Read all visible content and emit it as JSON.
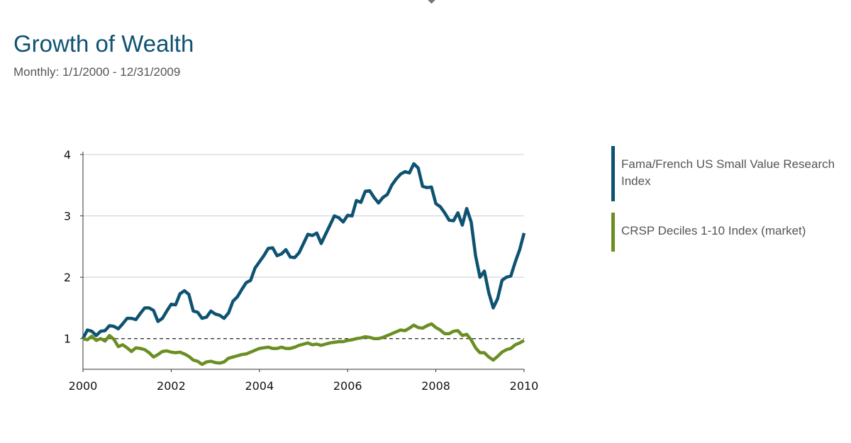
{
  "page": {
    "title": "Growth of Wealth",
    "subtitle": "Monthly: 1/1/2000 - 12/31/2009"
  },
  "chart_data": {
    "type": "line",
    "title": "Growth of Wealth",
    "subtitle": "Monthly: 1/1/2000 - 12/31/2009",
    "xlim": [
      2000,
      2010
    ],
    "ylim": [
      0.5,
      4.0
    ],
    "x_ticks": [
      2000,
      2002,
      2004,
      2006,
      2008,
      2010
    ],
    "y_ticks": [
      1,
      2,
      3,
      4
    ],
    "grid": "horizontal",
    "reference_line": 1,
    "legend_position": "right",
    "series": [
      {
        "name": "Fama/French US Small Value Research Index",
        "color": "#0e5272",
        "points": [
          [
            2000.0,
            1.0
          ],
          [
            2000.1,
            1.14
          ],
          [
            2000.2,
            1.12
          ],
          [
            2000.3,
            1.05
          ],
          [
            2000.4,
            1.12
          ],
          [
            2000.5,
            1.13
          ],
          [
            2000.6,
            1.21
          ],
          [
            2000.7,
            1.2
          ],
          [
            2000.8,
            1.16
          ],
          [
            2000.9,
            1.24
          ],
          [
            2001.0,
            1.33
          ],
          [
            2001.1,
            1.33
          ],
          [
            2001.2,
            1.31
          ],
          [
            2001.3,
            1.41
          ],
          [
            2001.4,
            1.5
          ],
          [
            2001.5,
            1.5
          ],
          [
            2001.6,
            1.46
          ],
          [
            2001.7,
            1.28
          ],
          [
            2001.8,
            1.33
          ],
          [
            2001.9,
            1.45
          ],
          [
            2002.0,
            1.56
          ],
          [
            2002.1,
            1.55
          ],
          [
            2002.2,
            1.73
          ],
          [
            2002.3,
            1.78
          ],
          [
            2002.4,
            1.72
          ],
          [
            2002.5,
            1.45
          ],
          [
            2002.6,
            1.43
          ],
          [
            2002.7,
            1.33
          ],
          [
            2002.8,
            1.35
          ],
          [
            2002.9,
            1.45
          ],
          [
            2003.0,
            1.4
          ],
          [
            2003.1,
            1.38
          ],
          [
            2003.2,
            1.33
          ],
          [
            2003.3,
            1.42
          ],
          [
            2003.4,
            1.61
          ],
          [
            2003.5,
            1.68
          ],
          [
            2003.6,
            1.8
          ],
          [
            2003.7,
            1.91
          ],
          [
            2003.8,
            1.95
          ],
          [
            2003.9,
            2.15
          ],
          [
            2004.0,
            2.25
          ],
          [
            2004.1,
            2.35
          ],
          [
            2004.2,
            2.47
          ],
          [
            2004.3,
            2.48
          ],
          [
            2004.4,
            2.35
          ],
          [
            2004.5,
            2.38
          ],
          [
            2004.6,
            2.45
          ],
          [
            2004.7,
            2.33
          ],
          [
            2004.8,
            2.32
          ],
          [
            2004.9,
            2.4
          ],
          [
            2005.0,
            2.55
          ],
          [
            2005.1,
            2.7
          ],
          [
            2005.2,
            2.68
          ],
          [
            2005.3,
            2.72
          ],
          [
            2005.4,
            2.55
          ],
          [
            2005.5,
            2.7
          ],
          [
            2005.6,
            2.85
          ],
          [
            2005.7,
            3.0
          ],
          [
            2005.8,
            2.97
          ],
          [
            2005.9,
            2.9
          ],
          [
            2006.0,
            3.01
          ],
          [
            2006.1,
            3.0
          ],
          [
            2006.2,
            3.25
          ],
          [
            2006.3,
            3.22
          ],
          [
            2006.4,
            3.4
          ],
          [
            2006.5,
            3.41
          ],
          [
            2006.6,
            3.3
          ],
          [
            2006.7,
            3.21
          ],
          [
            2006.8,
            3.3
          ],
          [
            2006.9,
            3.35
          ],
          [
            2007.0,
            3.5
          ],
          [
            2007.1,
            3.6
          ],
          [
            2007.2,
            3.68
          ],
          [
            2007.3,
            3.72
          ],
          [
            2007.4,
            3.7
          ],
          [
            2007.5,
            3.85
          ],
          [
            2007.6,
            3.78
          ],
          [
            2007.7,
            3.48
          ],
          [
            2007.8,
            3.46
          ],
          [
            2007.9,
            3.47
          ],
          [
            2008.0,
            3.2
          ],
          [
            2008.1,
            3.15
          ],
          [
            2008.2,
            3.05
          ],
          [
            2008.3,
            2.93
          ],
          [
            2008.4,
            2.92
          ],
          [
            2008.5,
            3.05
          ],
          [
            2008.6,
            2.85
          ],
          [
            2008.7,
            3.12
          ],
          [
            2008.8,
            2.9
          ],
          [
            2008.9,
            2.35
          ],
          [
            2009.0,
            2.0
          ],
          [
            2009.1,
            2.1
          ],
          [
            2009.2,
            1.75
          ],
          [
            2009.3,
            1.5
          ],
          [
            2009.4,
            1.65
          ],
          [
            2009.5,
            1.95
          ],
          [
            2009.6,
            2.0
          ],
          [
            2009.7,
            2.02
          ],
          [
            2009.8,
            2.25
          ],
          [
            2009.9,
            2.45
          ],
          [
            2010.0,
            2.72
          ]
        ]
      },
      {
        "name": "CRSP Deciles 1-10 Index (market)",
        "color": "#6b8e23",
        "points": [
          [
            2000.0,
            1.0
          ],
          [
            2000.1,
            0.98
          ],
          [
            2000.2,
            1.04
          ],
          [
            2000.3,
            0.97
          ],
          [
            2000.4,
            1.0
          ],
          [
            2000.5,
            0.96
          ],
          [
            2000.6,
            1.05
          ],
          [
            2000.7,
            0.99
          ],
          [
            2000.8,
            0.87
          ],
          [
            2000.9,
            0.9
          ],
          [
            2001.0,
            0.85
          ],
          [
            2001.1,
            0.79
          ],
          [
            2001.2,
            0.85
          ],
          [
            2001.3,
            0.84
          ],
          [
            2001.4,
            0.82
          ],
          [
            2001.5,
            0.77
          ],
          [
            2001.6,
            0.7
          ],
          [
            2001.7,
            0.74
          ],
          [
            2001.8,
            0.79
          ],
          [
            2001.9,
            0.8
          ],
          [
            2002.0,
            0.78
          ],
          [
            2002.1,
            0.77
          ],
          [
            2002.2,
            0.78
          ],
          [
            2002.3,
            0.75
          ],
          [
            2002.4,
            0.71
          ],
          [
            2002.5,
            0.65
          ],
          [
            2002.6,
            0.63
          ],
          [
            2002.7,
            0.58
          ],
          [
            2002.8,
            0.62
          ],
          [
            2002.9,
            0.63
          ],
          [
            2003.0,
            0.61
          ],
          [
            2003.1,
            0.6
          ],
          [
            2003.2,
            0.62
          ],
          [
            2003.3,
            0.68
          ],
          [
            2003.4,
            0.7
          ],
          [
            2003.5,
            0.72
          ],
          [
            2003.6,
            0.74
          ],
          [
            2003.7,
            0.75
          ],
          [
            2003.8,
            0.78
          ],
          [
            2003.9,
            0.81
          ],
          [
            2004.0,
            0.84
          ],
          [
            2004.1,
            0.85
          ],
          [
            2004.2,
            0.86
          ],
          [
            2004.3,
            0.84
          ],
          [
            2004.4,
            0.84
          ],
          [
            2004.5,
            0.86
          ],
          [
            2004.6,
            0.84
          ],
          [
            2004.7,
            0.84
          ],
          [
            2004.8,
            0.86
          ],
          [
            2004.9,
            0.89
          ],
          [
            2005.0,
            0.91
          ],
          [
            2005.1,
            0.93
          ],
          [
            2005.2,
            0.9
          ],
          [
            2005.3,
            0.91
          ],
          [
            2005.4,
            0.89
          ],
          [
            2005.5,
            0.91
          ],
          [
            2005.6,
            0.93
          ],
          [
            2005.7,
            0.94
          ],
          [
            2005.8,
            0.95
          ],
          [
            2005.9,
            0.95
          ],
          [
            2006.0,
            0.97
          ],
          [
            2006.1,
            0.98
          ],
          [
            2006.2,
            1.0
          ],
          [
            2006.3,
            1.01
          ],
          [
            2006.4,
            1.03
          ],
          [
            2006.5,
            1.02
          ],
          [
            2006.6,
            1.0
          ],
          [
            2006.7,
            1.0
          ],
          [
            2006.8,
            1.02
          ],
          [
            2006.9,
            1.05
          ],
          [
            2007.0,
            1.08
          ],
          [
            2007.1,
            1.11
          ],
          [
            2007.2,
            1.14
          ],
          [
            2007.3,
            1.13
          ],
          [
            2007.4,
            1.17
          ],
          [
            2007.5,
            1.22
          ],
          [
            2007.6,
            1.18
          ],
          [
            2007.7,
            1.17
          ],
          [
            2007.8,
            1.21
          ],
          [
            2007.9,
            1.24
          ],
          [
            2008.0,
            1.18
          ],
          [
            2008.1,
            1.14
          ],
          [
            2008.2,
            1.08
          ],
          [
            2008.3,
            1.08
          ],
          [
            2008.4,
            1.12
          ],
          [
            2008.5,
            1.13
          ],
          [
            2008.6,
            1.05
          ],
          [
            2008.7,
            1.07
          ],
          [
            2008.8,
            0.98
          ],
          [
            2008.9,
            0.85
          ],
          [
            2009.0,
            0.77
          ],
          [
            2009.1,
            0.77
          ],
          [
            2009.2,
            0.7
          ],
          [
            2009.3,
            0.65
          ],
          [
            2009.4,
            0.71
          ],
          [
            2009.5,
            0.78
          ],
          [
            2009.6,
            0.82
          ],
          [
            2009.7,
            0.84
          ],
          [
            2009.8,
            0.9
          ],
          [
            2009.9,
            0.93
          ],
          [
            2010.0,
            0.97
          ]
        ]
      }
    ]
  }
}
